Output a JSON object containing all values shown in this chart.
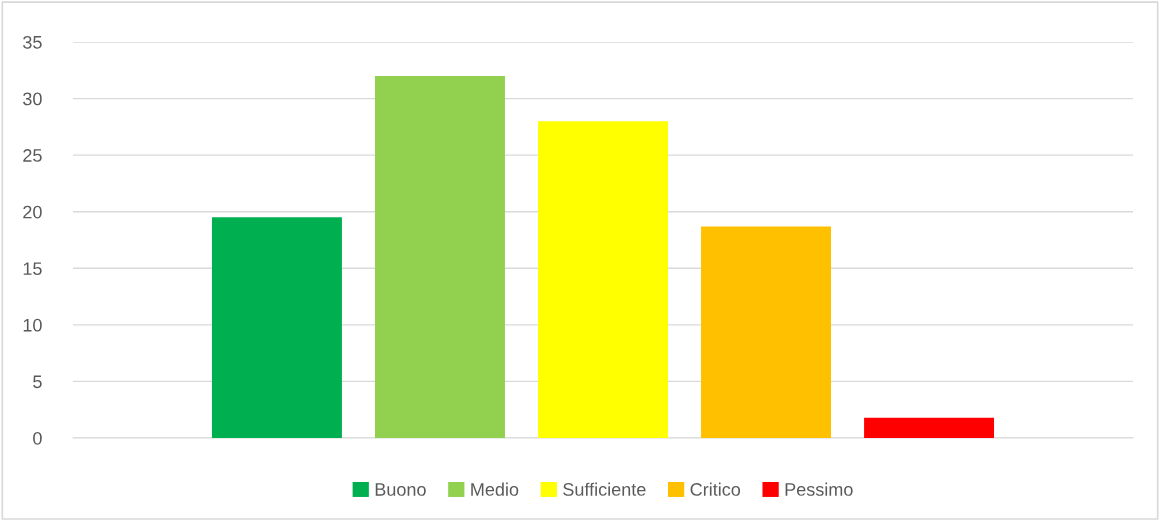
{
  "chart_data": {
    "type": "bar",
    "categories": [
      null
    ],
    "series": [
      {
        "name": "Buono",
        "color": "#00b050",
        "values": [
          19.5
        ]
      },
      {
        "name": "Medio",
        "color": "#92d050",
        "values": [
          32
        ]
      },
      {
        "name": "Sufficiente",
        "color": "#ffff00",
        "values": [
          28
        ]
      },
      {
        "name": "Critico",
        "color": "#ffc000",
        "values": [
          18.7
        ]
      },
      {
        "name": "Pessimo",
        "color": "#ff0000",
        "values": [
          1.8
        ]
      }
    ],
    "ylim": [
      0,
      35
    ],
    "yticks": [
      0,
      5,
      10,
      15,
      20,
      25,
      30,
      35
    ],
    "grid": "y",
    "legend": "bottom"
  }
}
